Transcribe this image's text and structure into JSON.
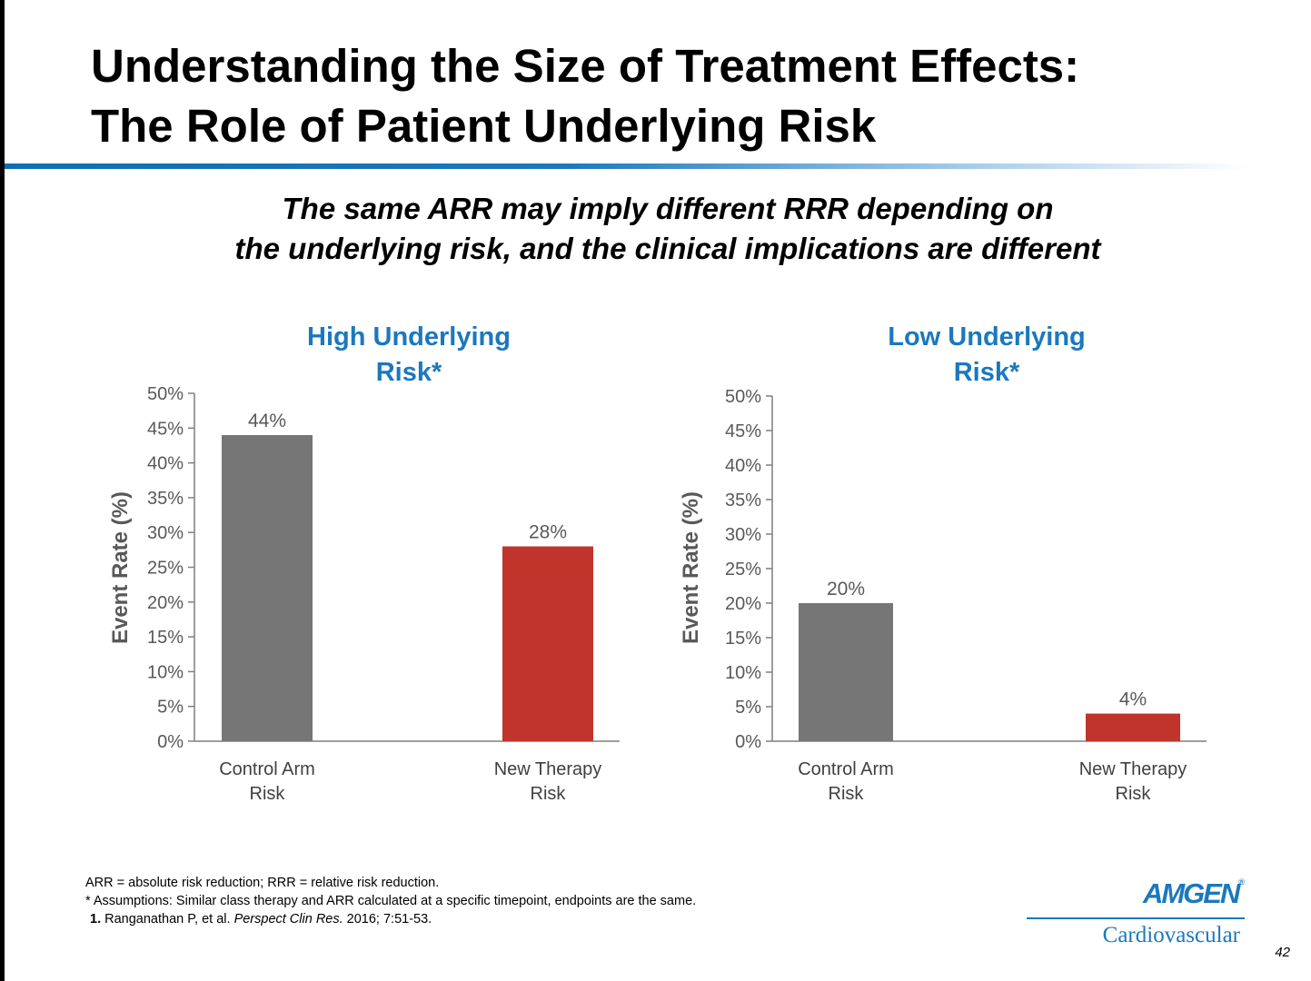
{
  "slide": {
    "title_line1": "Understanding the Size of Treatment Effects:",
    "title_line2": "The Role of Patient Underlying Risk",
    "subtitle_line1": "The same ARR may imply different RRR depending on",
    "subtitle_line2": "the underlying risk, and the clinical implications are different",
    "page_number": "42"
  },
  "colors": {
    "accent_blue": "#1b78be",
    "control_bar": "#767676",
    "therapy_bar": "#c0342c",
    "axis": "#7f7f7f",
    "tick_text": "#595959"
  },
  "chart_data": [
    {
      "type": "bar",
      "title_line1": "High Underlying",
      "title_line2": "Risk*",
      "ylabel": "Event Rate (%)",
      "ylim": [
        0,
        50
      ],
      "yticks": [
        "0%",
        "5%",
        "10%",
        "15%",
        "20%",
        "25%",
        "30%",
        "35%",
        "40%",
        "45%",
        "50%"
      ],
      "categories": [
        {
          "line1": "Control Arm",
          "line2": "Risk"
        },
        {
          "line1": "New Therapy",
          "line2": "Risk"
        }
      ],
      "values": [
        44,
        28
      ],
      "data_labels": [
        "44%",
        "28%"
      ],
      "bar_colors": [
        "#767676",
        "#c0342c"
      ]
    },
    {
      "type": "bar",
      "title_line1": "Low Underlying",
      "title_line2": "Risk*",
      "ylabel": "Event Rate (%)",
      "ylim": [
        0,
        50
      ],
      "yticks": [
        "0%",
        "5%",
        "10%",
        "15%",
        "20%",
        "25%",
        "30%",
        "35%",
        "40%",
        "45%",
        "50%"
      ],
      "categories": [
        {
          "line1": "Control Arm",
          "line2": "Risk"
        },
        {
          "line1": "New Therapy",
          "line2": "Risk"
        }
      ],
      "values": [
        20,
        4
      ],
      "data_labels": [
        "20%",
        "4%"
      ],
      "bar_colors": [
        "#767676",
        "#c0342c"
      ]
    }
  ],
  "footnotes": {
    "line1": "ARR = absolute risk reduction; RRR = relative risk reduction.",
    "line2": "* Assumptions: Similar class therapy and ARR calculated at a specific timepoint, endpoints are the same.",
    "ref_number": "1.",
    "ref_authors": "Ranganathan P, et al.",
    "ref_journal": "Perspect Clin Res.",
    "ref_details": "2016; 7:51-53."
  },
  "logo": {
    "wordmark": "AMGEN",
    "registered": "®",
    "division": "Cardiovascular"
  }
}
